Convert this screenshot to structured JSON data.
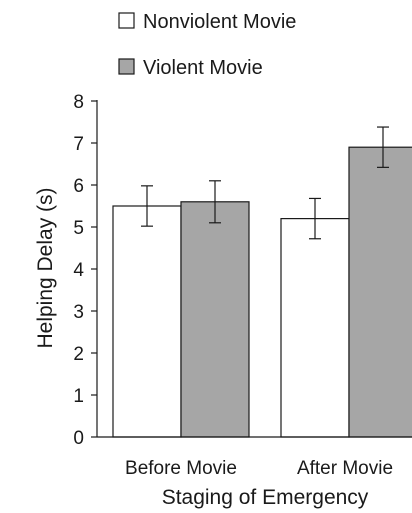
{
  "chart_data": {
    "type": "bar",
    "title": "",
    "xlabel": "Staging of Emergency",
    "ylabel": "Helping Delay (s)",
    "categories": [
      "Before Movie",
      "After Movie"
    ],
    "ylim": [
      0,
      8
    ],
    "yticks": [
      "0",
      "1",
      "2",
      "3",
      "4",
      "5",
      "6",
      "7",
      "8"
    ],
    "grid": false,
    "legend_position": "top",
    "series": [
      {
        "name": "Nonviolent Movie",
        "values": [
          5.5,
          5.2
        ],
        "error": [
          0.48,
          0.48
        ],
        "color": "#ffffff"
      },
      {
        "name": "Violent Movie",
        "values": [
          5.6,
          6.9
        ],
        "error": [
          0.5,
          0.48
        ],
        "color": "#a6a6a6"
      }
    ]
  }
}
